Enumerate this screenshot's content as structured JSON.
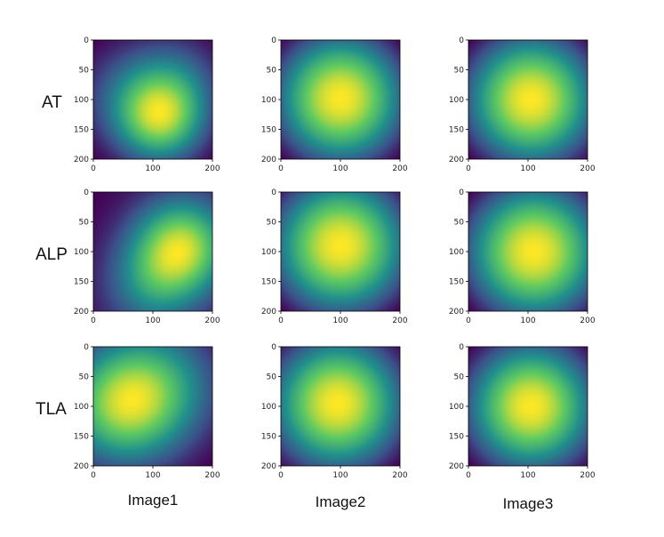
{
  "chart_data": {
    "type": "heatmap",
    "rows": [
      "AT",
      "ALP",
      "TLA"
    ],
    "columns": [
      "Image1",
      "Image2",
      "Image3"
    ],
    "xlim": [
      0,
      200
    ],
    "ylim": [
      200,
      0
    ],
    "xticks": [
      "0",
      "100",
      "200"
    ],
    "yticks": [
      "0",
      "50",
      "100",
      "150",
      "200"
    ],
    "colormap": [
      "#440154",
      "#3b528b",
      "#21918c",
      "#5ec962",
      "#fde725"
    ],
    "panels": [
      {
        "row": "AT",
        "column": "Image1",
        "hotspots": [
          [
            115,
            135,
            55,
            1.0
          ],
          [
            60,
            90,
            70,
            0.45
          ],
          [
            150,
            60,
            60,
            0.35
          ]
        ],
        "background": 0.42
      },
      {
        "row": "AT",
        "column": "Image2",
        "hotspots": [
          [
            100,
            98,
            90,
            1.0
          ]
        ],
        "background": 0.0
      },
      {
        "row": "AT",
        "column": "Image3",
        "hotspots": [
          [
            105,
            100,
            90,
            1.0
          ]
        ],
        "background": 0.0
      },
      {
        "row": "ALP",
        "column": "Image1",
        "hotspots": [
          [
            150,
            90,
            60,
            1.0
          ],
          [
            95,
            160,
            60,
            0.45
          ]
        ],
        "background": 0.25
      },
      {
        "row": "ALP",
        "column": "Image2",
        "hotspots": [
          [
            100,
            90,
            95,
            1.0
          ]
        ],
        "background": 0.0
      },
      {
        "row": "ALP",
        "column": "Image3",
        "hotspots": [
          [
            110,
            100,
            95,
            1.0
          ]
        ],
        "background": 0.0
      },
      {
        "row": "TLA",
        "column": "Image1",
        "hotspots": [
          [
            45,
            100,
            75,
            1.0
          ],
          [
            120,
            60,
            80,
            0.55
          ]
        ],
        "background": 0.38
      },
      {
        "row": "TLA",
        "column": "Image2",
        "hotspots": [
          [
            95,
            95,
            90,
            1.0
          ]
        ],
        "background": 0.0
      },
      {
        "row": "TLA",
        "column": "Image3",
        "hotspots": [
          [
            105,
            100,
            85,
            1.0
          ]
        ],
        "background": 0.0
      }
    ]
  }
}
